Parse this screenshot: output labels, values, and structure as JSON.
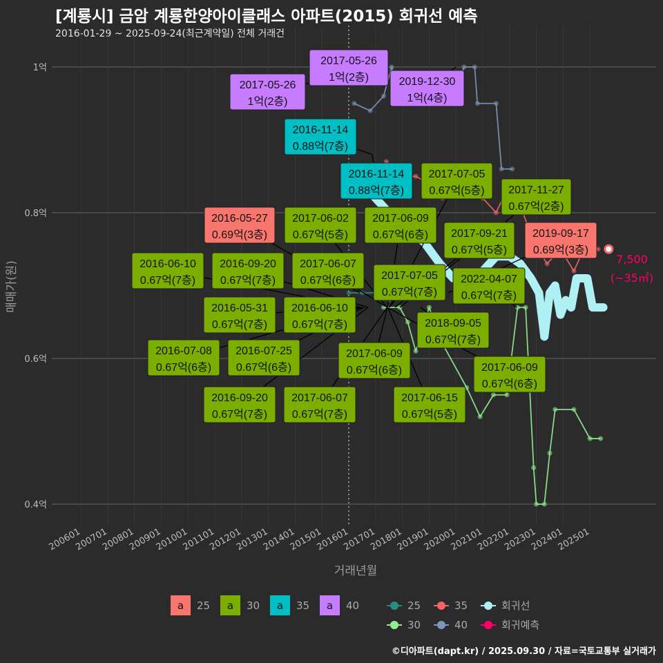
{
  "title": "[계룡시] 금암 계룡한양아이클래스 아파트(2015) 회귀선 예측",
  "subtitle": "2016-01-29 ~ 2025-09-24(최근계약일) 전체 거래건",
  "credit": "©디아파트(dapt.kr) / 2025.09.30 / 자료=국토교통부 실거래가",
  "colors": {
    "25": "#f8766d",
    "30": "#7cae00",
    "35": "#00bfc4",
    "40": "#c77cff",
    "line25": "#2a8a84",
    "line30": "#90ee90",
    "line35": "#f06565",
    "line40": "#7f96b8",
    "regression": "#aef0f4",
    "prediction": "#ff0066"
  },
  "chart_data": {
    "type": "line",
    "title": "[계룡시] 금암 계룡한양아이클래스 아파트(2015) 회귀선 예측",
    "xlabel": "거래년월",
    "ylabel": "매매가(원)",
    "x_ticks": [
      "200601",
      "200701",
      "200801",
      "200901",
      "201001",
      "201101",
      "201201",
      "201301",
      "201401",
      "201501",
      "201601",
      "201701",
      "201801",
      "201901",
      "202001",
      "202101",
      "202201",
      "202301",
      "202401",
      "202501"
    ],
    "y_ticks": [
      {
        "v": 0.4,
        "label": "0.4억"
      },
      {
        "v": 0.6,
        "label": "0.6억"
      },
      {
        "v": 0.8,
        "label": "0.8억"
      },
      {
        "v": 1.0,
        "label": "1억"
      }
    ],
    "ylim": [
      0.36,
      1.03
    ],
    "xlim": [
      2005.5,
      2026.2
    ],
    "grid": true,
    "reference_line_x": 2016.0,
    "series": [
      {
        "name": "회귀선",
        "key": "regression",
        "points": [
          [
            2016.0,
            0.86
          ],
          [
            2016.5,
            0.84
          ],
          [
            2017.0,
            0.82
          ],
          [
            2017.5,
            0.8
          ],
          [
            2018.0,
            0.78
          ],
          [
            2018.8,
            0.76
          ],
          [
            2019.4,
            0.73
          ],
          [
            2019.9,
            0.71
          ],
          [
            2020.5,
            0.71
          ],
          [
            2021.0,
            0.72
          ],
          [
            2021.5,
            0.74
          ],
          [
            2022.0,
            0.74
          ],
          [
            2022.4,
            0.73
          ],
          [
            2022.8,
            0.71
          ],
          [
            2023.1,
            0.69
          ],
          [
            2023.3,
            0.63
          ],
          [
            2023.5,
            0.69
          ],
          [
            2023.7,
            0.7
          ],
          [
            2023.9,
            0.66
          ],
          [
            2024.1,
            0.68
          ],
          [
            2024.3,
            0.67
          ],
          [
            2024.5,
            0.71
          ],
          [
            2024.9,
            0.71
          ],
          [
            2025.1,
            0.67
          ],
          [
            2025.5,
            0.67
          ]
        ]
      },
      {
        "name": "30",
        "key": "line30",
        "points": [
          [
            2017.3,
            0.67
          ],
          [
            2017.9,
            0.67
          ],
          [
            2018.2,
            0.65
          ],
          [
            2018.5,
            0.61
          ],
          [
            2019.0,
            0.67
          ],
          [
            2019.5,
            0.62
          ],
          [
            2020.4,
            0.56
          ],
          [
            2020.9,
            0.52
          ],
          [
            2021.4,
            0.55
          ],
          [
            2021.9,
            0.55
          ],
          [
            2022.3,
            0.67
          ],
          [
            2022.6,
            0.67
          ],
          [
            2022.9,
            0.45
          ],
          [
            2023.0,
            0.4
          ],
          [
            2023.3,
            0.4
          ],
          [
            2023.5,
            0.47
          ],
          [
            2023.7,
            0.53
          ],
          [
            2024.4,
            0.53
          ],
          [
            2025.0,
            0.49
          ],
          [
            2025.4,
            0.49
          ]
        ]
      },
      {
        "name": "40",
        "key": "line40",
        "points": [
          [
            2016.2,
            0.95
          ],
          [
            2016.8,
            0.94
          ],
          [
            2017.3,
            0.96
          ],
          [
            2017.6,
            1.0
          ],
          [
            2017.9,
            0.95
          ],
          [
            2018.8,
            0.96
          ],
          [
            2019.6,
            0.95
          ],
          [
            2020.0,
            0.96
          ],
          [
            2020.3,
            1.0
          ],
          [
            2020.7,
            1.0
          ],
          [
            2020.8,
            0.95
          ],
          [
            2021.5,
            0.95
          ],
          [
            2021.7,
            0.86
          ],
          [
            2022.1,
            0.86
          ]
        ]
      },
      {
        "name": "35",
        "key": "line35",
        "points": [
          [
            2017.4,
            0.87
          ],
          [
            2017.9,
            0.85
          ],
          [
            2018.5,
            0.85
          ],
          [
            2019.0,
            0.84
          ],
          [
            2019.5,
            0.82
          ],
          [
            2020.0,
            0.83
          ],
          [
            2020.5,
            0.85
          ],
          [
            2021.0,
            0.82
          ],
          [
            2021.5,
            0.8
          ],
          [
            2022.0,
            0.84
          ],
          [
            2022.5,
            0.8
          ],
          [
            2022.9,
            0.76
          ],
          [
            2023.4,
            0.73
          ],
          [
            2023.9,
            0.75
          ],
          [
            2024.4,
            0.72
          ],
          [
            2024.9,
            0.76
          ],
          [
            2025.3,
            0.75
          ]
        ]
      },
      {
        "name": "25",
        "key": "line25",
        "points": [
          [
            2016.0,
            0.69
          ],
          [
            2016.5,
            0.69
          ],
          [
            2017.0,
            0.69
          ],
          [
            2017.5,
            0.68
          ]
        ]
      }
    ],
    "prediction": {
      "x": 2025.7,
      "value": 0.75,
      "label": "7,500",
      "area": "(~35㎡)"
    },
    "annotations": [
      {
        "date": "2017-05-26",
        "price": "1억(2층)",
        "v": 1.0,
        "group": "40"
      },
      {
        "date": "2017-05-26",
        "price": "1억(2층)",
        "v": 1.0,
        "group": "40"
      },
      {
        "date": "2019-12-30",
        "price": "1억(4층)",
        "v": 1.0,
        "group": "40"
      },
      {
        "date": "2016-11-14",
        "price": "0.88억(7층)",
        "v": 0.88,
        "group": "35"
      },
      {
        "date": "2016-11-14",
        "price": "0.88억(7층)",
        "v": 0.88,
        "group": "35"
      },
      {
        "date": "2017-07-05",
        "price": "0.67억(5층)",
        "v": 0.67,
        "group": "30"
      },
      {
        "date": "2017-11-27",
        "price": "0.67억(2층)",
        "v": 0.67,
        "group": "30"
      },
      {
        "date": "2016-05-27",
        "price": "0.69억(3층)",
        "v": 0.69,
        "group": "25"
      },
      {
        "date": "2017-06-02",
        "price": "0.67억(5층)",
        "v": 0.67,
        "group": "30"
      },
      {
        "date": "2017-06-09",
        "price": "0.67억(6층)",
        "v": 0.67,
        "group": "30"
      },
      {
        "date": "2017-09-21",
        "price": "0.67억(5층)",
        "v": 0.67,
        "group": "30"
      },
      {
        "date": "2019-09-17",
        "price": "0.69억(3층)",
        "v": 0.69,
        "group": "25"
      },
      {
        "date": "2016-06-10",
        "price": "0.67억(7층)",
        "v": 0.67,
        "group": "30"
      },
      {
        "date": "2016-09-20",
        "price": "0.67억(7층)",
        "v": 0.67,
        "group": "30"
      },
      {
        "date": "2017-06-07",
        "price": "0.67억(6층)",
        "v": 0.67,
        "group": "30"
      },
      {
        "date": "2017-07-05",
        "price": "0.67억(7층)",
        "v": 0.67,
        "group": "30"
      },
      {
        "date": "2022-04-07",
        "price": "0.67억(7층)",
        "v": 0.67,
        "group": "30"
      },
      {
        "date": "2016-05-31",
        "price": "0.67억(7층)",
        "v": 0.67,
        "group": "30"
      },
      {
        "date": "2016-06-10",
        "price": "0.67억(7층)",
        "v": 0.67,
        "group": "30"
      },
      {
        "date": "2018-09-05",
        "price": "0.67억(7층)",
        "v": 0.67,
        "group": "30"
      },
      {
        "date": "2016-07-08",
        "price": "0.67억(6층)",
        "v": 0.67,
        "group": "30"
      },
      {
        "date": "2016-07-25",
        "price": "0.67억(6층)",
        "v": 0.67,
        "group": "30"
      },
      {
        "date": "2017-06-09",
        "price": "0.67억(6층)",
        "v": 0.67,
        "group": "30"
      },
      {
        "date": "2017-06-09",
        "price": "0.67억(6층)",
        "v": 0.67,
        "group": "30"
      },
      {
        "date": "2016-09-20",
        "price": "0.67억(7층)",
        "v": 0.67,
        "group": "30"
      },
      {
        "date": "2017-06-07",
        "price": "0.67억(7층)",
        "v": 0.67,
        "group": "30"
      },
      {
        "date": "2017-06-15",
        "price": "0.67억(5층)",
        "v": 0.67,
        "group": "30"
      }
    ],
    "legend_fill": [
      {
        "key": "25",
        "label": "25"
      },
      {
        "key": "30",
        "label": "30"
      },
      {
        "key": "35",
        "label": "35"
      },
      {
        "key": "40",
        "label": "40"
      }
    ],
    "legend_line": [
      {
        "key": "line25",
        "label": "25"
      },
      {
        "key": "line35",
        "label": "35"
      },
      {
        "key": "regression",
        "label": "회귀선"
      },
      {
        "key": "line30",
        "label": "30"
      },
      {
        "key": "line40",
        "label": "40"
      },
      {
        "key": "prediction",
        "label": "회귀예측"
      }
    ],
    "legend_glyph": "a",
    "legend_placement": "bottom"
  }
}
